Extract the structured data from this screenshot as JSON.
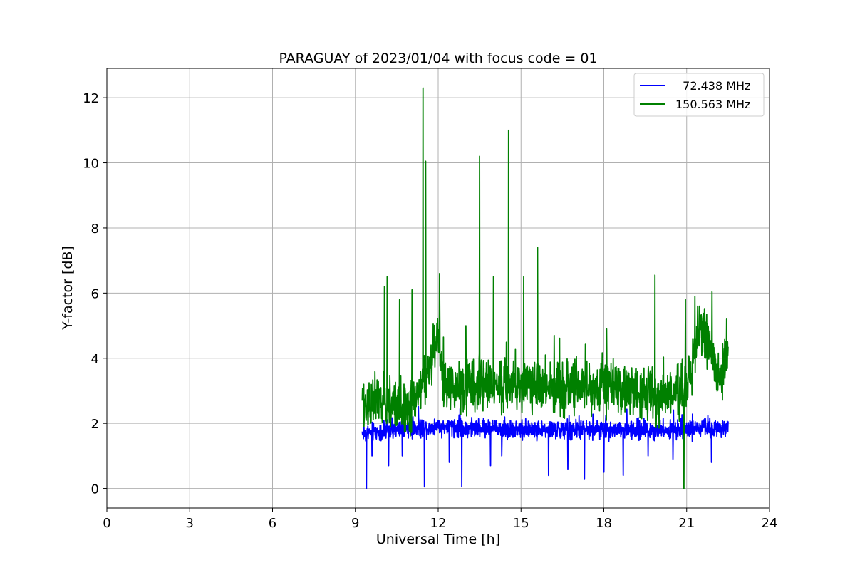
{
  "chart_data": {
    "type": "line",
    "title": "PARAGUAY of 2023/01/04 with focus code = 01",
    "xlabel": "Universal Time [h]",
    "ylabel": "Y-factor [dB]",
    "xlim": [
      0,
      24
    ],
    "ylim": [
      -0.6,
      12.9
    ],
    "xticks": [
      0,
      3,
      6,
      9,
      12,
      15,
      18,
      21,
      24
    ],
    "yticks": [
      0,
      2,
      4,
      6,
      8,
      10,
      12
    ],
    "grid": true,
    "legend_position": "top-right",
    "series": [
      {
        "name": "  72.438 MHz",
        "color": "#0000ff",
        "x_start": 9.25,
        "x_end": 22.5,
        "baseline": [
          [
            9.25,
            1.7
          ],
          [
            12.0,
            1.9
          ],
          [
            15.0,
            1.8
          ],
          [
            18.0,
            1.8
          ],
          [
            21.0,
            1.8
          ],
          [
            22.5,
            1.9
          ]
        ],
        "amplitude": 0.25,
        "spikes": [
          [
            9.4,
            0.0
          ],
          [
            9.6,
            1.0
          ],
          [
            10.2,
            0.7
          ],
          [
            10.7,
            1.0
          ],
          [
            11.5,
            0.05
          ],
          [
            12.4,
            0.8
          ],
          [
            12.85,
            0.05
          ],
          [
            13.9,
            0.7
          ],
          [
            14.3,
            1.0
          ],
          [
            16.0,
            0.4
          ],
          [
            16.7,
            0.6
          ],
          [
            17.3,
            0.3
          ],
          [
            18.0,
            0.5
          ],
          [
            18.7,
            0.4
          ],
          [
            19.6,
            1.0
          ],
          [
            20.5,
            0.9
          ],
          [
            21.9,
            0.8
          ]
        ]
      },
      {
        "name": "150.563 MHz",
        "color": "#008000",
        "x_start": 9.25,
        "x_end": 22.5,
        "baseline": [
          [
            9.25,
            2.6
          ],
          [
            10.0,
            2.6
          ],
          [
            11.0,
            2.5
          ],
          [
            11.6,
            3.5
          ],
          [
            12.0,
            4.7
          ],
          [
            12.2,
            3.1
          ],
          [
            14.0,
            3.2
          ],
          [
            15.0,
            3.2
          ],
          [
            16.5,
            3.1
          ],
          [
            18.0,
            3.1
          ],
          [
            19.5,
            3.0
          ],
          [
            20.5,
            2.8
          ],
          [
            21.0,
            3.0
          ],
          [
            21.4,
            4.8
          ],
          [
            21.8,
            4.6
          ],
          [
            22.2,
            3.2
          ],
          [
            22.5,
            4.2
          ]
        ],
        "amplitude": 0.7,
        "spikes": [
          [
            9.3,
            3.2
          ],
          [
            10.05,
            6.2
          ],
          [
            10.15,
            6.5
          ],
          [
            10.6,
            5.8
          ],
          [
            11.05,
            6.1
          ],
          [
            11.45,
            12.3
          ],
          [
            11.55,
            10.05
          ],
          [
            12.05,
            6.6
          ],
          [
            13.0,
            5.0
          ],
          [
            13.5,
            10.2
          ],
          [
            14.0,
            6.5
          ],
          [
            14.55,
            11.0
          ],
          [
            15.1,
            6.5
          ],
          [
            15.6,
            7.4
          ],
          [
            16.2,
            4.7
          ],
          [
            18.1,
            4.9
          ],
          [
            19.85,
            6.55
          ],
          [
            20.9,
            0.0
          ],
          [
            20.95,
            5.8
          ],
          [
            21.3,
            5.9
          ],
          [
            22.45,
            5.2
          ]
        ]
      }
    ]
  }
}
